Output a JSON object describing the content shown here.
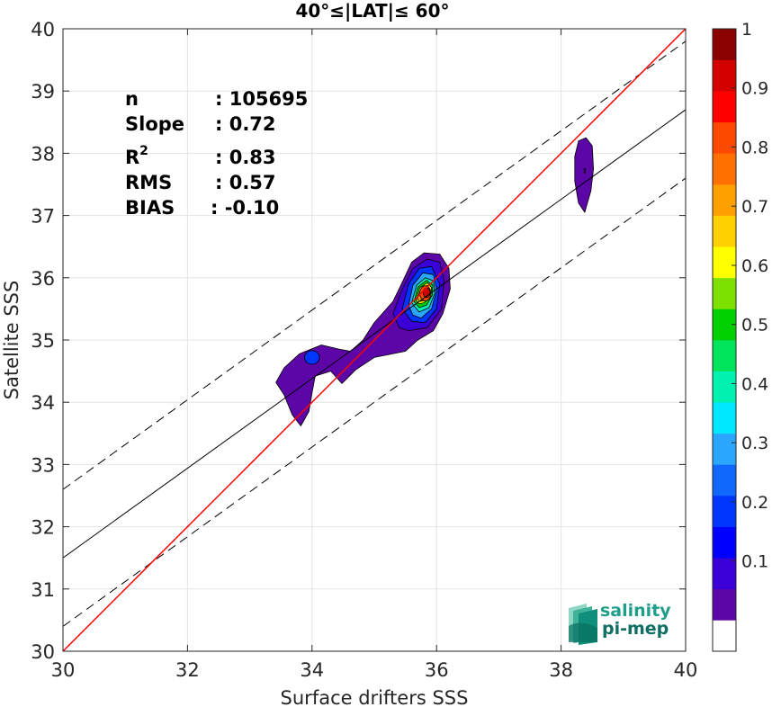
{
  "chart_data": {
    "type": "scatter",
    "subtype": "density contour",
    "title": "40°≤|LAT|≤ 60°",
    "xlabel": "Surface drifters SSS",
    "ylabel": "Satellite SSS",
    "xlim": [
      30,
      40
    ],
    "ylim": [
      30,
      40
    ],
    "xticks": [
      30,
      32,
      34,
      36,
      38,
      40
    ],
    "yticks": [
      30,
      31,
      32,
      33,
      34,
      35,
      36,
      37,
      38,
      39,
      40
    ],
    "grid": true,
    "stats": [
      {
        "label": "n",
        "value": ": 105695"
      },
      {
        "label": "Slope",
        "value": ": 0.72"
      },
      {
        "label": "R",
        "sup": "2",
        "value": ": 0.83"
      },
      {
        "label": "RMS",
        "value": ": 0.57"
      },
      {
        "label": "BIAS",
        "value": ": -0.10"
      }
    ],
    "lines": {
      "identity": {
        "color": "#ff0000",
        "slope": 1,
        "intercept": 0
      },
      "regression": {
        "color": "#000000",
        "slope": 0.72,
        "intercept": 9.9
      },
      "upper_bound": {
        "color": "#000000",
        "dash": true,
        "slope": 0.72,
        "intercept": 11.0
      },
      "lower_bound": {
        "color": "#000000",
        "dash": true,
        "slope": 0.72,
        "intercept": 8.8
      }
    },
    "colorbar": {
      "min": 0,
      "max": 1,
      "ticks": [
        "0.1",
        "0.2",
        "0.3",
        "0.4",
        "0.5",
        "0.6",
        "0.7",
        "0.8",
        "0.9",
        "1"
      ],
      "colors": [
        "#ffffff",
        "#5c06a8",
        "#3b00d8",
        "#0000ff",
        "#0034ff",
        "#1068ff",
        "#2aa6ff",
        "#00e8ff",
        "#00f2b0",
        "#00e45c",
        "#00d000",
        "#7ee000",
        "#ffff00",
        "#ffd000",
        "#ffa000",
        "#ff7000",
        "#ff4800",
        "#ff0000",
        "#d40000",
        "#8b0000"
      ]
    },
    "density_peaks": [
      {
        "x": 35.85,
        "y": 35.75,
        "value": 0.9
      },
      {
        "x": 34.0,
        "y": 34.72,
        "value": 0.2
      },
      {
        "x": 38.38,
        "y": 37.72,
        "value": 0.1
      }
    ]
  },
  "logo": {
    "line1": "salinity",
    "line2": "pi-mep"
  }
}
